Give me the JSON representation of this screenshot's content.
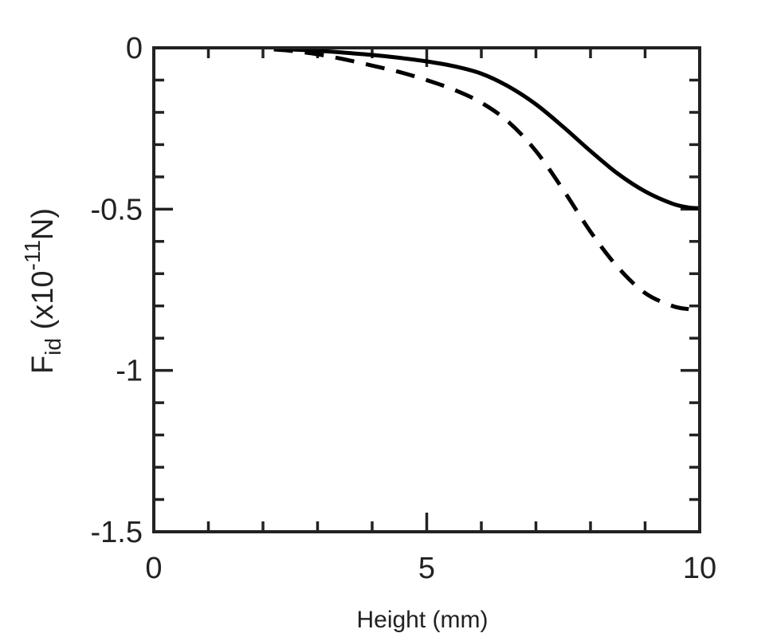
{
  "chart_data": {
    "type": "line",
    "title": "",
    "xlabel": "Height (mm)",
    "ylabel": {
      "base": "F",
      "sub": "id",
      "unit_prefix": " (x10",
      "exponent": "-11",
      "unit_suffix": "N)"
    },
    "xlim": [
      0,
      10
    ],
    "ylim": [
      -1.5,
      0
    ],
    "xticks": [
      0,
      5,
      10
    ],
    "xtick_labels": [
      "0",
      "5",
      "10"
    ],
    "yticks": [
      0,
      -0.5,
      -1,
      -1.5
    ],
    "ytick_labels": [
      "0",
      "-0.5",
      "-1",
      "-1.5"
    ],
    "grid": false,
    "legend": false,
    "series": [
      {
        "style": "solid",
        "color": "#000000",
        "x": [
          2.2,
          2.5,
          3,
          3.5,
          4,
          4.5,
          5,
          5.5,
          6,
          6.5,
          7,
          7.5,
          8,
          8.5,
          9,
          9.5,
          9.8,
          10
        ],
        "y": [
          -0.003,
          -0.005,
          -0.009,
          -0.015,
          -0.022,
          -0.031,
          -0.042,
          -0.057,
          -0.08,
          -0.12,
          -0.175,
          -0.245,
          -0.32,
          -0.39,
          -0.445,
          -0.483,
          -0.495,
          -0.497
        ]
      },
      {
        "style": "dashed",
        "color": "#000000",
        "x": [
          2.2,
          2.5,
          3,
          3.5,
          4,
          4.5,
          5,
          5.5,
          6,
          6.5,
          7,
          7.5,
          8,
          8.5,
          9,
          9.5,
          9.8
        ],
        "y": [
          -0.005,
          -0.009,
          -0.02,
          -0.036,
          -0.055,
          -0.075,
          -0.1,
          -0.13,
          -0.17,
          -0.23,
          -0.32,
          -0.44,
          -0.57,
          -0.68,
          -0.76,
          -0.8,
          -0.81
        ]
      }
    ]
  }
}
